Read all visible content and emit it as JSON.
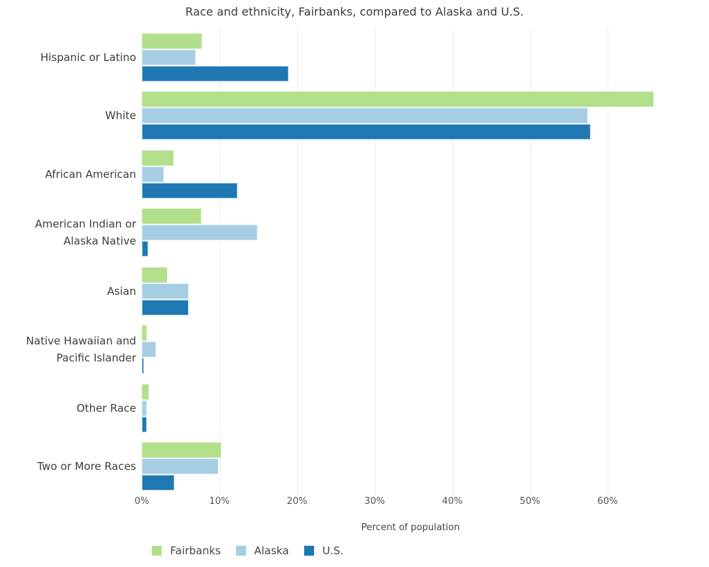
{
  "chart_data": {
    "type": "bar",
    "orientation": "horizontal",
    "title": "Race and ethnicity, Fairbanks, compared to Alaska and U.S.",
    "xlabel": "Percent of population",
    "categories": [
      "Hispanic or Latino",
      "White",
      "African American",
      "American Indian or Alaska Native",
      "Asian",
      "Native Hawaiian and Pacific Islander",
      "Other Race",
      "Two or More Races"
    ],
    "series": [
      {
        "name": "Fairbanks",
        "color": "#b2df8a",
        "border_color": "#cdeab4",
        "values": [
          7.8,
          65.9,
          4.1,
          7.7,
          3.3,
          0.6,
          0.9,
          10.2
        ]
      },
      {
        "name": "Alaska",
        "color": "#a6cee3",
        "border_color": "#cfe4f1",
        "values": [
          6.9,
          57.4,
          2.8,
          14.9,
          6.0,
          1.8,
          0.6,
          9.9
        ]
      },
      {
        "name": "U.S.",
        "color": "#1f78b4",
        "border_color": "#a9cde4",
        "values": [
          18.9,
          57.8,
          12.3,
          0.8,
          6.0,
          0.3,
          0.6,
          4.2
        ]
      }
    ],
    "x_ticks": [
      {
        "label": "0%",
        "value": 0
      },
      {
        "label": "10%",
        "value": 10
      },
      {
        "label": "20%",
        "value": 20
      },
      {
        "label": "30%",
        "value": 30
      },
      {
        "label": "40%",
        "value": 40
      },
      {
        "label": "50%",
        "value": 50
      },
      {
        "label": "60%",
        "value": 60
      }
    ],
    "xlim": [
      0,
      72.6
    ],
    "grid": "vertical-gridlines-on",
    "legend_position": "bottom-left",
    "gridline_color": "#ececec",
    "text_color": "#3d3d3d"
  }
}
